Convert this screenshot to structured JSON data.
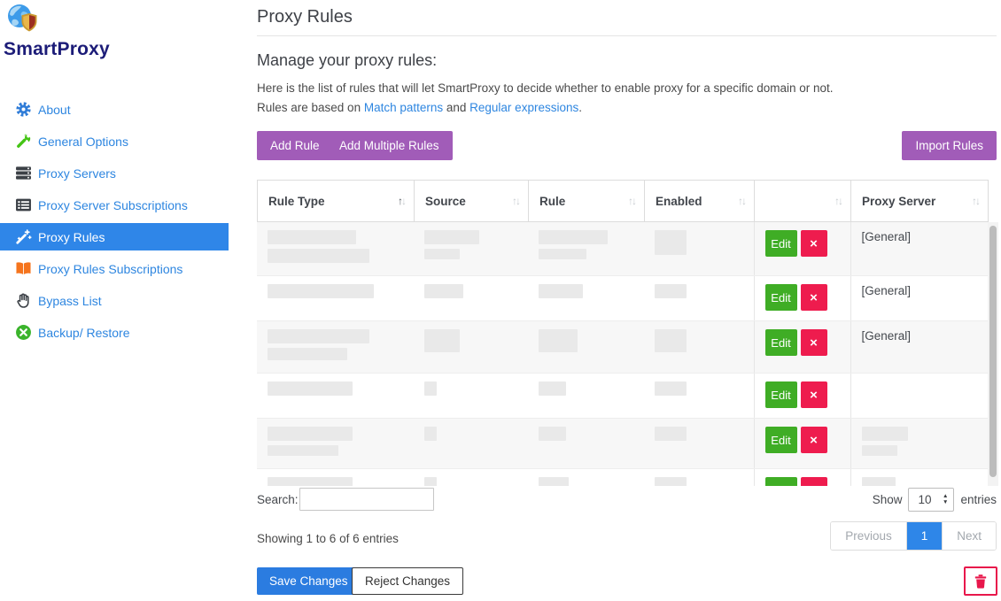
{
  "app": {
    "name": "SmartProxy"
  },
  "sidebar": {
    "items": [
      {
        "label": "About",
        "icon": "gear-icon",
        "active": false
      },
      {
        "label": "General Options",
        "icon": "wrench-icon",
        "active": false
      },
      {
        "label": "Proxy Servers",
        "icon": "servers-icon",
        "active": false
      },
      {
        "label": "Proxy Server Subscriptions",
        "icon": "table-list-icon",
        "active": false
      },
      {
        "label": "Proxy Rules",
        "icon": "magic-wand-icon",
        "active": true
      },
      {
        "label": "Proxy Rules Subscriptions",
        "icon": "book-icon",
        "active": false
      },
      {
        "label": "Bypass List",
        "icon": "hand-icon",
        "active": false
      },
      {
        "label": "Backup/ Restore",
        "icon": "restore-icon",
        "active": false
      }
    ]
  },
  "page": {
    "title": "Proxy Rules"
  },
  "section": {
    "heading": "Manage your proxy rules:",
    "line1": "Here is the list of rules that will let SmartProxy to decide whether to enable proxy for a specific domain or not.",
    "line2_prefix": "Rules are based on ",
    "link_match": "Match patterns",
    "line2_and": " and ",
    "link_regex": "Regular expressions",
    "line2_suffix": "."
  },
  "toolbar": {
    "add_rule": "Add Rule",
    "add_multiple_rules": "Add Multiple Rules",
    "import_rules": "Import Rules"
  },
  "table": {
    "columns": [
      {
        "label": "Rule Type",
        "sort": "asc"
      },
      {
        "label": "Source",
        "sort": "none"
      },
      {
        "label": "Rule",
        "sort": "none"
      },
      {
        "label": "Enabled",
        "sort": "none"
      },
      {
        "label": "",
        "sort": "none"
      },
      {
        "label": "Proxy Server",
        "sort": "none"
      }
    ],
    "edit_label": "Edit",
    "delete_label": "×",
    "rows": [
      {
        "proxy_server": "[General]",
        "redacted": true
      },
      {
        "proxy_server": "[General]",
        "redacted": true
      },
      {
        "proxy_server": "[General]",
        "redacted": true
      },
      {
        "proxy_server": null,
        "redacted": true
      },
      {
        "proxy_server": null,
        "redacted": true
      },
      {
        "proxy_server": null,
        "redacted": true
      }
    ]
  },
  "table_footer": {
    "search_label": "Search:",
    "search_value": "",
    "show_label": "Show",
    "page_size": "10",
    "entries_label": "entries",
    "showing_text": "Showing 1 to 6 of 6 entries",
    "pagination": {
      "previous": "Previous",
      "current": "1",
      "next": "Next"
    }
  },
  "footer_actions": {
    "save": "Save Changes",
    "reject": "Reject Changes"
  },
  "colors": {
    "accent_blue": "#2f86e8",
    "link_blue": "#2e86e0",
    "purple": "#a15cb8",
    "edit_green": "#3fad25",
    "delete_red": "#ee1c4e",
    "save_blue": "#2b7ce0",
    "trash_crimson": "#e8174b",
    "brand_navy": "#1c1c78",
    "book_orange": "#f5741d"
  }
}
